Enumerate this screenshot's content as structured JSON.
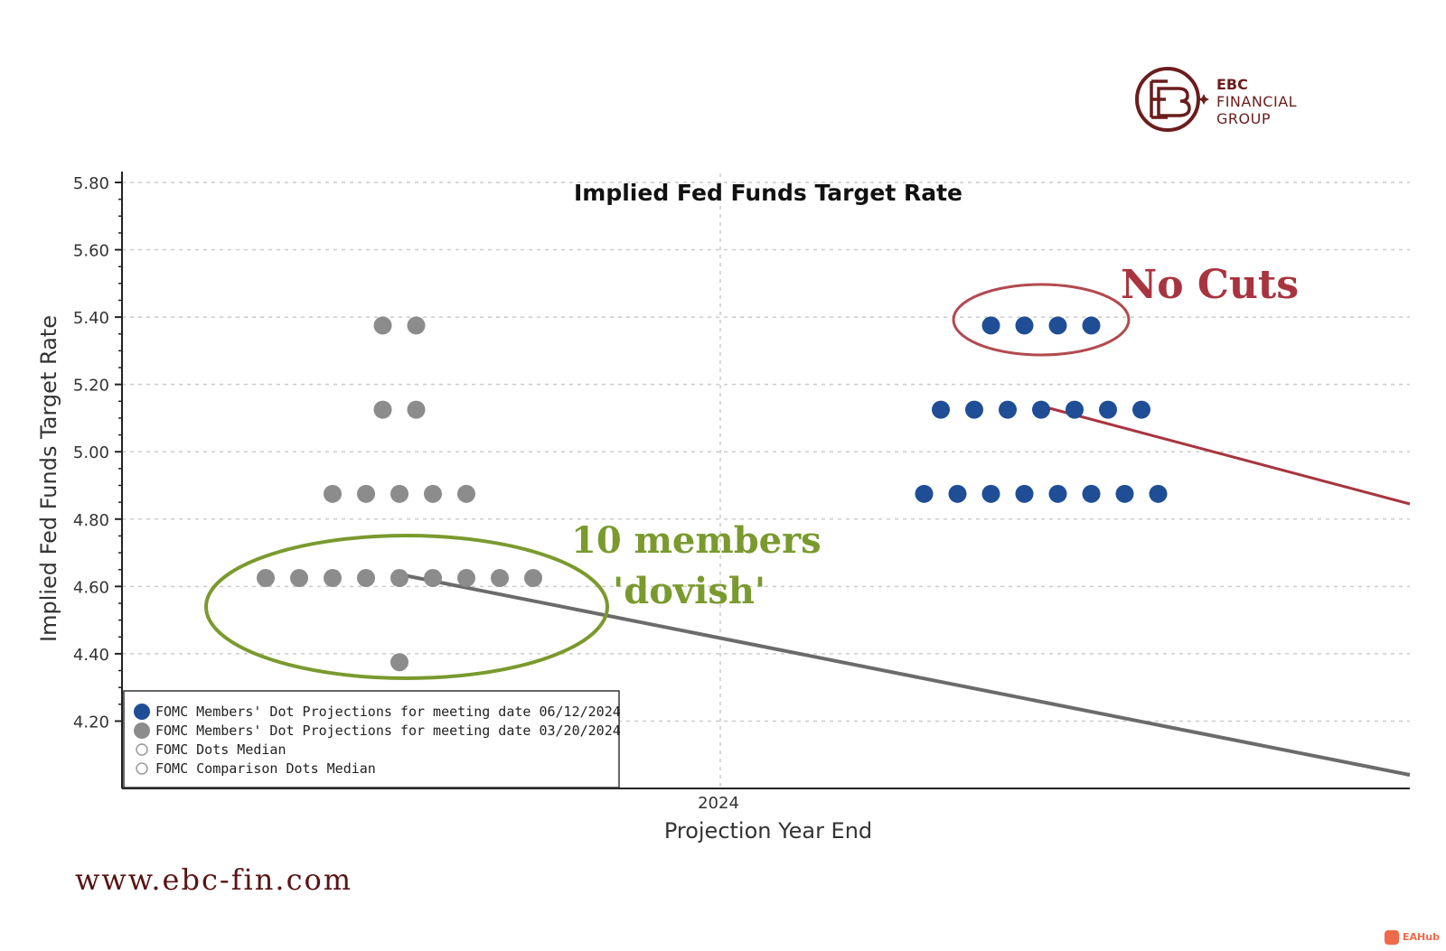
{
  "brand": {
    "line1": "EBC",
    "line2": "FINANCIAL",
    "line3": "GROUP",
    "color": "#6b1d1d"
  },
  "website": "www.ebc-fin.com",
  "badge": "EAHub",
  "chart_data": {
    "type": "scatter",
    "title": "Implied Fed Funds Target Rate",
    "xlabel": "Projection Year End",
    "ylabel": "Implied Fed Funds Target Rate",
    "x_tick_labels": [
      "2024"
    ],
    "y_ticks": [
      4.2,
      4.4,
      4.6,
      4.8,
      5.0,
      5.2,
      5.4,
      5.6,
      5.8
    ],
    "y_tick_labels": [
      "4.20",
      "4.40",
      "4.60",
      "4.80",
      "5.00",
      "5.20",
      "5.40",
      "5.60",
      "5.80"
    ],
    "ylim": [
      4.0,
      5.8
    ],
    "grid": true,
    "legend_position": "bottom-left",
    "series": [
      {
        "name": "FOMC Members' Dot Projections for meeting date 06/12/2024",
        "color": "#1f4e96",
        "points": [
          {
            "y": 5.375,
            "count": 4
          },
          {
            "y": 5.125,
            "count": 7
          },
          {
            "y": 4.875,
            "count": 8
          }
        ]
      },
      {
        "name": "FOMC Members' Dot Projections for meeting date 03/20/2024",
        "color": "#8c8c8c",
        "points": [
          {
            "y": 5.375,
            "count": 2
          },
          {
            "y": 5.125,
            "count": 2
          },
          {
            "y": 4.875,
            "count": 5
          },
          {
            "y": 4.625,
            "count": 9
          },
          {
            "y": 4.375,
            "count": 1
          }
        ]
      }
    ],
    "legend": [
      {
        "label": "FOMC Members' Dot Projections for meeting date 06/12/2024",
        "color": "#1f4e96",
        "style": "filled"
      },
      {
        "label": "FOMC Members' Dot Projections for meeting date 03/20/2024",
        "color": "#8c8c8c",
        "style": "filled"
      },
      {
        "label": "FOMC Dots Median",
        "color": "#999999",
        "style": "hollow"
      },
      {
        "label": "FOMC Comparison Dots Median",
        "color": "#999999",
        "style": "hollow"
      }
    ],
    "annotations": {
      "no_cuts": "No Cuts",
      "dovish_line1": "10 members",
      "dovish_line2": "'dovish'",
      "red_color": "#a8343f",
      "green_color": "#7a9a2e",
      "line_color": "#6b6b6b"
    }
  }
}
